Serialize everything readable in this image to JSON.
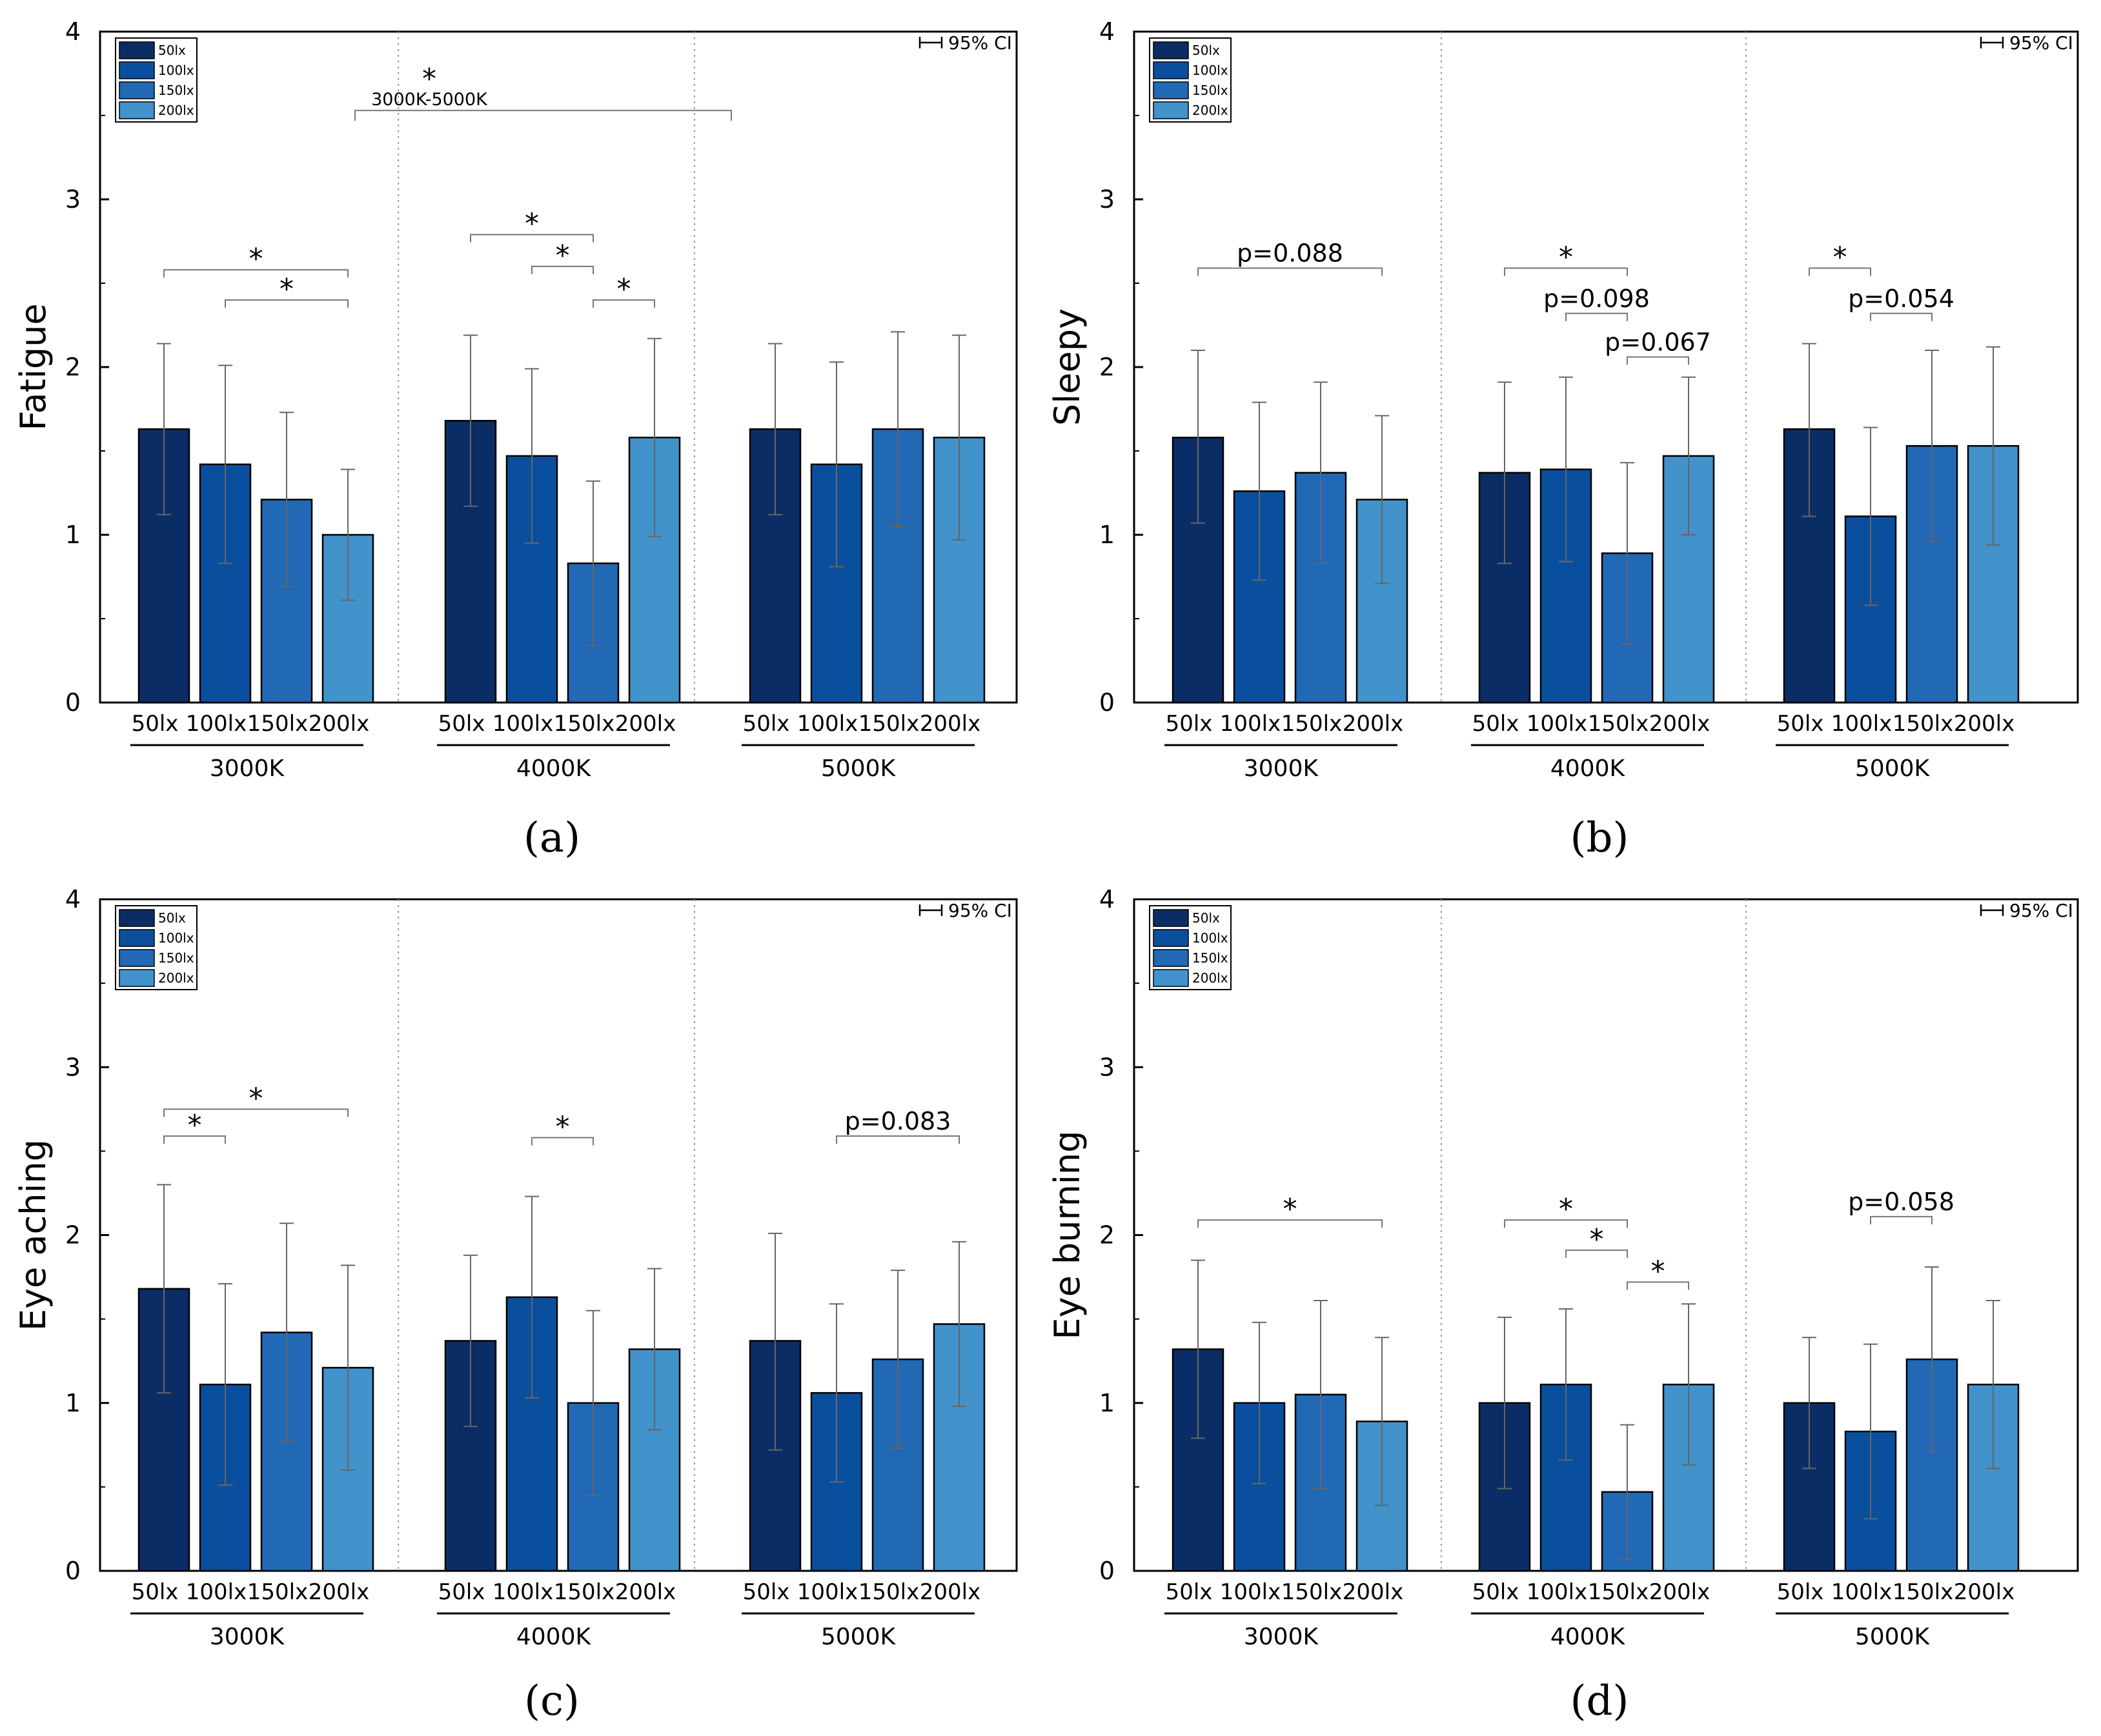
{
  "figure": {
    "legend_labels": [
      "50lx",
      "100lx",
      "150lx",
      "200lx"
    ],
    "colors": [
      "#0b2d65",
      "#0a4f9d",
      "#2169b5",
      "#4292cb"
    ],
    "ci_label": "95% CI",
    "group_labels": [
      "3000K",
      "4000K",
      "5000K"
    ],
    "bar_labels": [
      "50lx",
      "100lx",
      "150lx",
      "200lx"
    ]
  },
  "chart_data": [
    {
      "type": "bar",
      "caption": "(a)",
      "ylabel": "Fatigue",
      "ylim": [
        0,
        4
      ],
      "yticks": [
        0,
        1,
        2,
        3,
        4
      ],
      "categories": [
        "3000K",
        "4000K",
        "5000K"
      ],
      "series": [
        {
          "name": "50lx",
          "values": [
            1.63,
            1.68,
            1.63
          ],
          "ci_low": [
            1.12,
            1.17,
            1.12
          ],
          "ci_high": [
            2.14,
            2.19,
            2.14
          ]
        },
        {
          "name": "100lx",
          "values": [
            1.42,
            1.47,
            1.42
          ],
          "ci_low": [
            0.83,
            0.95,
            0.81
          ],
          "ci_high": [
            2.01,
            1.99,
            2.03
          ]
        },
        {
          "name": "150lx",
          "values": [
            1.21,
            0.83,
            1.63
          ],
          "ci_low": [
            0.69,
            0.34,
            1.05
          ],
          "ci_high": [
            1.73,
            1.32,
            2.21
          ]
        },
        {
          "name": "200lx",
          "values": [
            1.0,
            1.58,
            1.58
          ],
          "ci_low": [
            0.61,
            0.99,
            0.97
          ],
          "ci_high": [
            1.39,
            2.17,
            2.19
          ]
        }
      ],
      "annotations": [
        {
          "group": 0,
          "from": 0,
          "to": 3,
          "y": 2.58,
          "label": "*"
        },
        {
          "group": 0,
          "from": 1,
          "to": 3,
          "y": 2.4,
          "label": "*"
        },
        {
          "group": 1,
          "from": 0,
          "to": 2,
          "y": 2.79,
          "label": "*"
        },
        {
          "group": 1,
          "from": 1,
          "to": 2,
          "y": 2.6,
          "label": "*"
        },
        {
          "group": 1,
          "from": 2,
          "to": 3,
          "y": 2.4,
          "label": "*"
        }
      ],
      "cross_annotation": {
        "label": "*",
        "text": "3000K-5000K",
        "y": 3.53
      }
    },
    {
      "type": "bar",
      "caption": "(b)",
      "ylabel": "Sleepy",
      "ylim": [
        0,
        4
      ],
      "yticks": [
        0,
        1,
        2,
        3,
        4
      ],
      "categories": [
        "3000K",
        "4000K",
        "5000K"
      ],
      "series": [
        {
          "name": "50lx",
          "values": [
            1.58,
            1.37,
            1.63
          ],
          "ci_low": [
            1.07,
            0.83,
            1.11
          ],
          "ci_high": [
            2.1,
            1.91,
            2.14
          ]
        },
        {
          "name": "100lx",
          "values": [
            1.26,
            1.39,
            1.11
          ],
          "ci_low": [
            0.73,
            0.84,
            0.58
          ],
          "ci_high": [
            1.79,
            1.94,
            1.64
          ]
        },
        {
          "name": "150lx",
          "values": [
            1.37,
            0.89,
            1.53
          ],
          "ci_low": [
            0.83,
            0.35,
            0.96
          ],
          "ci_high": [
            1.91,
            1.43,
            2.1
          ]
        },
        {
          "name": "200lx",
          "values": [
            1.21,
            1.47,
            1.53
          ],
          "ci_low": [
            0.71,
            1.0,
            0.94
          ],
          "ci_high": [
            1.71,
            1.94,
            2.12
          ]
        }
      ],
      "annotations": [
        {
          "group": 0,
          "from": 0,
          "to": 3,
          "y": 2.59,
          "label": "p=0.088"
        },
        {
          "group": 1,
          "from": 0,
          "to": 2,
          "y": 2.59,
          "label": "*"
        },
        {
          "group": 1,
          "from": 1,
          "to": 2,
          "y": 2.32,
          "label": "p=0.098"
        },
        {
          "group": 1,
          "from": 2,
          "to": 3,
          "y": 2.06,
          "label": "p=0.067"
        },
        {
          "group": 2,
          "from": 0,
          "to": 1,
          "y": 2.59,
          "label": "*"
        },
        {
          "group": 2,
          "from": 1,
          "to": 2,
          "y": 2.32,
          "label": "p=0.054"
        }
      ]
    },
    {
      "type": "bar",
      "caption": "(c)",
      "ylabel": "Eye aching",
      "ylim": [
        0,
        4
      ],
      "yticks": [
        0,
        1,
        2,
        3,
        4
      ],
      "categories": [
        "3000K",
        "4000K",
        "5000K"
      ],
      "series": [
        {
          "name": "50lx",
          "values": [
            1.68,
            1.37,
            1.37
          ],
          "ci_low": [
            1.06,
            0.86,
            0.72
          ],
          "ci_high": [
            2.3,
            1.88,
            2.01
          ]
        },
        {
          "name": "100lx",
          "values": [
            1.11,
            1.63,
            1.06
          ],
          "ci_low": [
            0.51,
            1.03,
            0.53
          ],
          "ci_high": [
            1.71,
            2.23,
            1.59
          ]
        },
        {
          "name": "150lx",
          "values": [
            1.42,
            1.0,
            1.26
          ],
          "ci_low": [
            0.77,
            0.45,
            0.73
          ],
          "ci_high": [
            2.07,
            1.55,
            1.79
          ]
        },
        {
          "name": "200lx",
          "values": [
            1.21,
            1.32,
            1.47
          ],
          "ci_low": [
            0.6,
            0.84,
            0.98
          ],
          "ci_high": [
            1.82,
            1.8,
            1.96
          ]
        }
      ],
      "annotations": [
        {
          "group": 0,
          "from": 0,
          "to": 3,
          "y": 2.75,
          "label": "*"
        },
        {
          "group": 0,
          "from": 0,
          "to": 1,
          "y": 2.59,
          "label": "*"
        },
        {
          "group": 1,
          "from": 1,
          "to": 2,
          "y": 2.58,
          "label": "*"
        },
        {
          "group": 2,
          "from": 1,
          "to": 3,
          "y": 2.59,
          "label": "p=0.083"
        }
      ]
    },
    {
      "type": "bar",
      "caption": "(d)",
      "ylabel": "Eye burning",
      "ylim": [
        0,
        4
      ],
      "yticks": [
        0,
        1,
        2,
        3,
        4
      ],
      "categories": [
        "3000K",
        "4000K",
        "5000K"
      ],
      "series": [
        {
          "name": "50lx",
          "values": [
            1.32,
            1.0,
            1.0
          ],
          "ci_low": [
            0.79,
            0.49,
            0.61
          ],
          "ci_high": [
            1.85,
            1.51,
            1.39
          ]
        },
        {
          "name": "100lx",
          "values": [
            1.0,
            1.11,
            0.83
          ],
          "ci_low": [
            0.52,
            0.66,
            0.31
          ],
          "ci_high": [
            1.48,
            1.56,
            1.35
          ]
        },
        {
          "name": "150lx",
          "values": [
            1.05,
            0.47,
            1.26
          ],
          "ci_low": [
            0.49,
            0.07,
            0.71
          ],
          "ci_high": [
            1.61,
            0.87,
            1.81
          ]
        },
        {
          "name": "200lx",
          "values": [
            0.89,
            1.11,
            1.11
          ],
          "ci_low": [
            0.39,
            0.63,
            0.61
          ],
          "ci_high": [
            1.39,
            1.59,
            1.61
          ]
        }
      ],
      "annotations": [
        {
          "group": 0,
          "from": 0,
          "to": 3,
          "y": 2.09,
          "label": "*"
        },
        {
          "group": 1,
          "from": 0,
          "to": 2,
          "y": 2.09,
          "label": "*"
        },
        {
          "group": 1,
          "from": 1,
          "to": 2,
          "y": 1.91,
          "label": "*"
        },
        {
          "group": 1,
          "from": 2,
          "to": 3,
          "y": 1.72,
          "label": "*"
        },
        {
          "group": 2,
          "from": 1,
          "to": 2,
          "y": 2.11,
          "label": "p=0.058"
        }
      ]
    }
  ]
}
